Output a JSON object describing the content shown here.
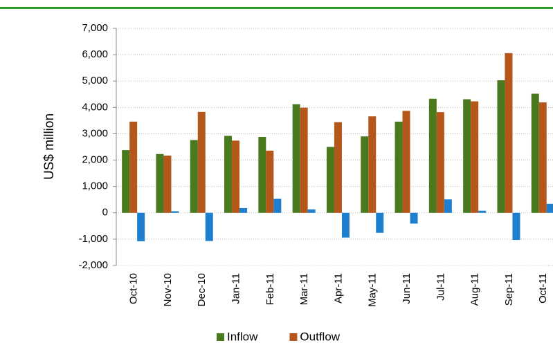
{
  "chart_data": {
    "type": "bar",
    "y_label": "US$ million",
    "categories": [
      "Oct-10",
      "Nov-10",
      "Dec-10",
      "Jan-11",
      "Feb-11",
      "Mar-11",
      "Apr-11",
      "May-11",
      "Jun-11",
      "Jul-11",
      "Aug-11",
      "Sep-11",
      "Oct-11"
    ],
    "series": [
      {
        "name": "Inflow",
        "color": "#4a7a1e",
        "values": [
          2380,
          2230,
          2760,
          2920,
          2880,
          4120,
          2500,
          2900,
          3460,
          4330,
          4310,
          5030,
          4520
        ]
      },
      {
        "name": "Outflow",
        "color": "#b5561a",
        "values": [
          3460,
          2170,
          3830,
          2740,
          2360,
          3990,
          3440,
          3660,
          3870,
          3820,
          4230,
          6060,
          4190
        ]
      },
      {
        "color": "#1f7fcf",
        "values": [
          -1080,
          60,
          -1070,
          180,
          530,
          130,
          -940,
          -760,
          -410,
          510,
          80,
          -1030,
          340
        ]
      }
    ],
    "ylim": [
      -2000,
      7000
    ],
    "yticks": [
      {
        "value": -2000,
        "label": "-2,000"
      },
      {
        "value": -1000,
        "label": "-1,000"
      },
      0,
      {
        "value": 1000,
        "label": "1,000"
      },
      {
        "value": 2000,
        "label": "2,000"
      },
      {
        "value": 3000,
        "label": "3,000"
      },
      {
        "value": 4000,
        "label": "4,000"
      },
      {
        "value": 5000,
        "label": "5,000"
      },
      {
        "value": 6000,
        "label": "6,000"
      },
      {
        "value": 7000,
        "label": "7,000"
      }
    ],
    "grid": true,
    "legend": "bottom"
  }
}
